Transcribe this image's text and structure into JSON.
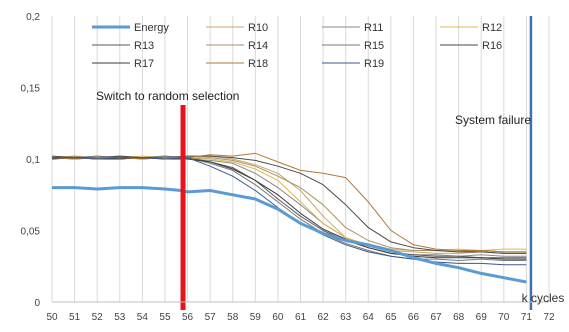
{
  "chart_data": {
    "type": "line",
    "title": "",
    "xlabel": "k cycles",
    "ylabel": "",
    "xlim": [
      50,
      72
    ],
    "ylim": [
      0,
      0.2
    ],
    "x_ticks": [
      "50",
      "51",
      "52",
      "53",
      "54",
      "55",
      "56",
      "57",
      "58",
      "59",
      "60",
      "61",
      "62",
      "63",
      "64",
      "65",
      "66",
      "67",
      "68",
      "69",
      "70",
      "71",
      "72"
    ],
    "y_ticks": [
      "0",
      "0,05",
      "0,1",
      "0,15",
      "0,2"
    ],
    "grid": "vertical",
    "legend_position": "top",
    "annotations": [
      {
        "text": "Switch to random selection",
        "x": 55.8,
        "color": "#e8121b"
      },
      {
        "text": "System failure",
        "x": 71.2,
        "color": "#3f72a8"
      }
    ],
    "series": [
      {
        "name": "Energy",
        "color": "#5b9bd5",
        "width": 3,
        "values": [
          [
            50,
            0.08
          ],
          [
            51,
            0.08
          ],
          [
            52,
            0.079
          ],
          [
            53,
            0.08
          ],
          [
            54,
            0.08
          ],
          [
            55,
            0.079
          ],
          [
            55.7,
            0.078
          ],
          [
            56,
            0.077
          ],
          [
            57,
            0.078
          ],
          [
            58,
            0.075
          ],
          [
            59,
            0.072
          ],
          [
            60,
            0.065
          ],
          [
            61,
            0.055
          ],
          [
            62,
            0.048
          ],
          [
            63,
            0.043
          ],
          [
            64,
            0.04
          ],
          [
            65,
            0.036
          ],
          [
            66,
            0.031
          ],
          [
            67,
            0.027
          ],
          [
            68,
            0.024
          ],
          [
            69,
            0.02
          ],
          [
            70,
            0.017
          ],
          [
            71,
            0.014
          ]
        ]
      },
      {
        "name": "R10",
        "color": "#c9a46c",
        "width": 1,
        "values": [
          [
            50,
            0.101
          ],
          [
            51,
            0.102
          ],
          [
            52,
            0.101
          ],
          [
            53,
            0.102
          ],
          [
            54,
            0.101
          ],
          [
            55,
            0.102
          ],
          [
            56,
            0.101
          ],
          [
            57,
            0.102
          ],
          [
            58,
            0.1
          ],
          [
            59,
            0.096
          ],
          [
            60,
            0.09
          ],
          [
            61,
            0.078
          ],
          [
            62,
            0.06
          ],
          [
            63,
            0.045
          ],
          [
            64,
            0.04
          ],
          [
            65,
            0.036
          ],
          [
            66,
            0.035
          ],
          [
            67,
            0.034
          ],
          [
            68,
            0.034
          ],
          [
            69,
            0.035
          ],
          [
            70,
            0.034
          ],
          [
            71,
            0.034
          ]
        ]
      },
      {
        "name": "R11",
        "color": "#8a8a8a",
        "width": 1,
        "values": [
          [
            50,
            0.1
          ],
          [
            51,
            0.101
          ],
          [
            52,
            0.1
          ],
          [
            53,
            0.101
          ],
          [
            54,
            0.1
          ],
          [
            55,
            0.101
          ],
          [
            56,
            0.1
          ],
          [
            57,
            0.099
          ],
          [
            58,
            0.097
          ],
          [
            59,
            0.09
          ],
          [
            60,
            0.08
          ],
          [
            61,
            0.068
          ],
          [
            62,
            0.055
          ],
          [
            63,
            0.045
          ],
          [
            64,
            0.039
          ],
          [
            65,
            0.035
          ],
          [
            66,
            0.033
          ],
          [
            67,
            0.033
          ],
          [
            68,
            0.032
          ],
          [
            69,
            0.033
          ],
          [
            70,
            0.032
          ],
          [
            71,
            0.032
          ]
        ]
      },
      {
        "name": "R12",
        "color": "#e0b84a",
        "width": 1,
        "values": [
          [
            50,
            0.102
          ],
          [
            51,
            0.101
          ],
          [
            52,
            0.102
          ],
          [
            53,
            0.101
          ],
          [
            54,
            0.102
          ],
          [
            55,
            0.101
          ],
          [
            56,
            0.102
          ],
          [
            57,
            0.1
          ],
          [
            58,
            0.098
          ],
          [
            59,
            0.093
          ],
          [
            60,
            0.085
          ],
          [
            61,
            0.07
          ],
          [
            62,
            0.055
          ],
          [
            63,
            0.045
          ],
          [
            64,
            0.04
          ],
          [
            65,
            0.037
          ],
          [
            66,
            0.036
          ],
          [
            67,
            0.036
          ],
          [
            68,
            0.037
          ],
          [
            69,
            0.036
          ],
          [
            70,
            0.037
          ],
          [
            71,
            0.037
          ]
        ]
      },
      {
        "name": "R13",
        "color": "#5a5a5a",
        "width": 1,
        "values": [
          [
            50,
            0.101
          ],
          [
            51,
            0.1
          ],
          [
            52,
            0.101
          ],
          [
            53,
            0.1
          ],
          [
            54,
            0.101
          ],
          [
            55,
            0.1
          ],
          [
            56,
            0.101
          ],
          [
            57,
            0.098
          ],
          [
            58,
            0.094
          ],
          [
            59,
            0.085
          ],
          [
            60,
            0.072
          ],
          [
            61,
            0.06
          ],
          [
            62,
            0.05
          ],
          [
            63,
            0.043
          ],
          [
            64,
            0.038
          ],
          [
            65,
            0.034
          ],
          [
            66,
            0.033
          ],
          [
            67,
            0.032
          ],
          [
            68,
            0.032
          ],
          [
            69,
            0.031
          ],
          [
            70,
            0.031
          ],
          [
            71,
            0.031
          ]
        ]
      },
      {
        "name": "R14",
        "color": "#a89060",
        "width": 1,
        "values": [
          [
            50,
            0.1
          ],
          [
            51,
            0.102
          ],
          [
            52,
            0.1
          ],
          [
            53,
            0.102
          ],
          [
            54,
            0.1
          ],
          [
            55,
            0.102
          ],
          [
            56,
            0.1
          ],
          [
            57,
            0.101
          ],
          [
            58,
            0.099
          ],
          [
            59,
            0.095
          ],
          [
            60,
            0.088
          ],
          [
            61,
            0.08
          ],
          [
            62,
            0.068
          ],
          [
            63,
            0.052
          ],
          [
            64,
            0.043
          ],
          [
            65,
            0.038
          ],
          [
            66,
            0.036
          ],
          [
            67,
            0.036
          ],
          [
            68,
            0.035
          ],
          [
            69,
            0.036
          ],
          [
            70,
            0.035
          ],
          [
            71,
            0.035
          ]
        ]
      },
      {
        "name": "R15",
        "color": "#7a7a7a",
        "width": 1,
        "values": [
          [
            50,
            0.101
          ],
          [
            51,
            0.101
          ],
          [
            52,
            0.102
          ],
          [
            53,
            0.101
          ],
          [
            54,
            0.101
          ],
          [
            55,
            0.102
          ],
          [
            56,
            0.101
          ],
          [
            57,
            0.097
          ],
          [
            58,
            0.092
          ],
          [
            59,
            0.082
          ],
          [
            60,
            0.07
          ],
          [
            61,
            0.058
          ],
          [
            62,
            0.048
          ],
          [
            63,
            0.041
          ],
          [
            64,
            0.036
          ],
          [
            65,
            0.032
          ],
          [
            66,
            0.03
          ],
          [
            67,
            0.03
          ],
          [
            68,
            0.029
          ],
          [
            69,
            0.03
          ],
          [
            70,
            0.029
          ],
          [
            71,
            0.029
          ]
        ]
      },
      {
        "name": "R16",
        "color": "#4a4a4a",
        "width": 1,
        "values": [
          [
            50,
            0.102
          ],
          [
            51,
            0.101
          ],
          [
            52,
            0.101
          ],
          [
            53,
            0.102
          ],
          [
            54,
            0.101
          ],
          [
            55,
            0.101
          ],
          [
            56,
            0.102
          ],
          [
            57,
            0.102
          ],
          [
            58,
            0.101
          ],
          [
            59,
            0.099
          ],
          [
            60,
            0.095
          ],
          [
            61,
            0.09
          ],
          [
            62,
            0.082
          ],
          [
            63,
            0.068
          ],
          [
            64,
            0.052
          ],
          [
            65,
            0.042
          ],
          [
            66,
            0.038
          ],
          [
            67,
            0.036
          ],
          [
            68,
            0.035
          ],
          [
            69,
            0.035
          ],
          [
            70,
            0.034
          ],
          [
            71,
            0.034
          ]
        ]
      },
      {
        "name": "R17",
        "color": "#3a3a3a",
        "width": 1,
        "values": [
          [
            50,
            0.1
          ],
          [
            51,
            0.101
          ],
          [
            52,
            0.1
          ],
          [
            53,
            0.1
          ],
          [
            54,
            0.101
          ],
          [
            55,
            0.1
          ],
          [
            56,
            0.1
          ],
          [
            57,
            0.098
          ],
          [
            58,
            0.093
          ],
          [
            59,
            0.085
          ],
          [
            60,
            0.075
          ],
          [
            61,
            0.062
          ],
          [
            62,
            0.051
          ],
          [
            63,
            0.044
          ],
          [
            64,
            0.038
          ],
          [
            65,
            0.034
          ],
          [
            66,
            0.032
          ],
          [
            67,
            0.031
          ],
          [
            68,
            0.031
          ],
          [
            69,
            0.031
          ],
          [
            70,
            0.03
          ],
          [
            71,
            0.03
          ]
        ]
      },
      {
        "name": "R18",
        "color": "#b07a3a",
        "width": 1,
        "values": [
          [
            50,
            0.101
          ],
          [
            51,
            0.1
          ],
          [
            52,
            0.101
          ],
          [
            53,
            0.101
          ],
          [
            54,
            0.1
          ],
          [
            55,
            0.101
          ],
          [
            56,
            0.101
          ],
          [
            57,
            0.103
          ],
          [
            58,
            0.102
          ],
          [
            59,
            0.104
          ],
          [
            60,
            0.098
          ],
          [
            61,
            0.092
          ],
          [
            62,
            0.09
          ],
          [
            63,
            0.087
          ],
          [
            64,
            0.07
          ],
          [
            65,
            0.05
          ],
          [
            66,
            0.04
          ],
          [
            67,
            0.037
          ],
          [
            68,
            0.036
          ],
          [
            69,
            0.036
          ],
          [
            70,
            0.035
          ],
          [
            71,
            0.035
          ]
        ]
      },
      {
        "name": "R19",
        "color": "#3b5a8c",
        "width": 1,
        "values": [
          [
            50,
            0.101
          ],
          [
            51,
            0.101
          ],
          [
            52,
            0.1
          ],
          [
            53,
            0.101
          ],
          [
            54,
            0.101
          ],
          [
            55,
            0.1
          ],
          [
            56,
            0.101
          ],
          [
            57,
            0.095
          ],
          [
            58,
            0.088
          ],
          [
            59,
            0.078
          ],
          [
            60,
            0.066
          ],
          [
            61,
            0.055
          ],
          [
            62,
            0.047
          ],
          [
            63,
            0.04
          ],
          [
            64,
            0.035
          ],
          [
            65,
            0.032
          ],
          [
            66,
            0.03
          ],
          [
            67,
            0.028
          ],
          [
            68,
            0.027
          ],
          [
            69,
            0.027
          ],
          [
            70,
            0.026
          ],
          [
            71,
            0.026
          ]
        ]
      }
    ]
  }
}
